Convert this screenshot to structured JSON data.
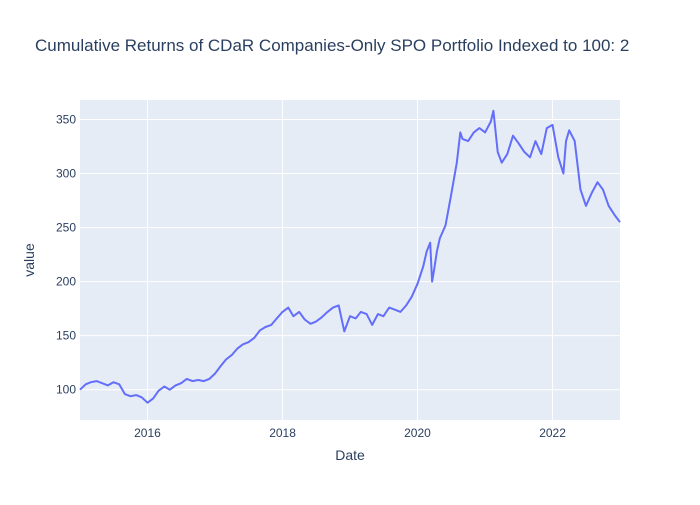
{
  "chart_data": {
    "type": "line",
    "title": "Cumulative Returns of CDaR Companies-Only SPO Portfolio Indexed to 100: 2",
    "xlabel": "Date",
    "ylabel": "value",
    "xlim": [
      "2015-01-01",
      "2023-01-01"
    ],
    "ylim": [
      72,
      368
    ],
    "x_ticks": [
      "2016",
      "2018",
      "2020",
      "2022"
    ],
    "y_ticks": [
      100,
      150,
      200,
      250,
      300,
      350
    ],
    "grid": true,
    "legend": "none",
    "colors": {
      "line": "#636efa",
      "plot_bg": "#e5ecf6",
      "grid": "#ffffff",
      "text": "#2a3f5f"
    },
    "series": [
      {
        "x": [
          "2015-01-01",
          "2015-02-01",
          "2015-03-01",
          "2015-04-01",
          "2015-05-01",
          "2015-06-01",
          "2015-07-01",
          "2015-08-01",
          "2015-09-01",
          "2015-10-01",
          "2015-11-01",
          "2015-12-01",
          "2016-01-01",
          "2016-02-01",
          "2016-03-01",
          "2016-04-01",
          "2016-05-01",
          "2016-06-01",
          "2016-07-01",
          "2016-08-01",
          "2016-09-01",
          "2016-10-01",
          "2016-11-01",
          "2016-12-01",
          "2017-01-01",
          "2017-02-01",
          "2017-03-01",
          "2017-04-01",
          "2017-05-01",
          "2017-06-01",
          "2017-07-01",
          "2017-08-01",
          "2017-09-01",
          "2017-10-01",
          "2017-11-01",
          "2017-12-01",
          "2018-01-01",
          "2018-02-01",
          "2018-03-01",
          "2018-04-01",
          "2018-05-01",
          "2018-06-01",
          "2018-07-01",
          "2018-08-01",
          "2018-09-01",
          "2018-10-01",
          "2018-11-01",
          "2018-12-01",
          "2019-01-01",
          "2019-02-01",
          "2019-03-01",
          "2019-04-01",
          "2019-05-01",
          "2019-06-01",
          "2019-07-01",
          "2019-08-01",
          "2019-09-01",
          "2019-10-01",
          "2019-11-01",
          "2019-12-01",
          "2020-01-01",
          "2020-02-01",
          "2020-02-20",
          "2020-03-10",
          "2020-03-20",
          "2020-04-01",
          "2020-04-15",
          "2020-05-01",
          "2020-06-01",
          "2020-07-01",
          "2020-08-01",
          "2020-08-20",
          "2020-09-01",
          "2020-10-01",
          "2020-11-01",
          "2020-12-01",
          "2021-01-01",
          "2021-02-01",
          "2021-02-15",
          "2021-03-10",
          "2021-04-01",
          "2021-05-01",
          "2021-06-01",
          "2021-07-01",
          "2021-08-01",
          "2021-09-01",
          "2021-10-01",
          "2021-11-01",
          "2021-12-01",
          "2022-01-01",
          "2022-02-01",
          "2022-03-01",
          "2022-03-15",
          "2022-04-01",
          "2022-05-01",
          "2022-06-01",
          "2022-07-01",
          "2022-08-01",
          "2022-09-01",
          "2022-10-01",
          "2022-11-01",
          "2022-12-01",
          "2023-01-01"
        ],
        "y": [
          100,
          105,
          107,
          108,
          106,
          104,
          107,
          105,
          96,
          94,
          95,
          93,
          88,
          92,
          99,
          103,
          100,
          104,
          106,
          110,
          108,
          109,
          108,
          110,
          115,
          122,
          128,
          132,
          138,
          142,
          144,
          148,
          155,
          158,
          160,
          166,
          172,
          176,
          168,
          172,
          165,
          161,
          163,
          167,
          172,
          176,
          178,
          154,
          168,
          166,
          172,
          170,
          160,
          170,
          168,
          176,
          174,
          172,
          178,
          186,
          198,
          214,
          228,
          236,
          200,
          212,
          228,
          240,
          252,
          280,
          310,
          338,
          332,
          330,
          338,
          342,
          338,
          348,
          358,
          320,
          310,
          318,
          335,
          328,
          320,
          315,
          330,
          318,
          342,
          345,
          315,
          300,
          330,
          340,
          330,
          285,
          270,
          282,
          292,
          285,
          270,
          262,
          255
        ]
      }
    ]
  }
}
